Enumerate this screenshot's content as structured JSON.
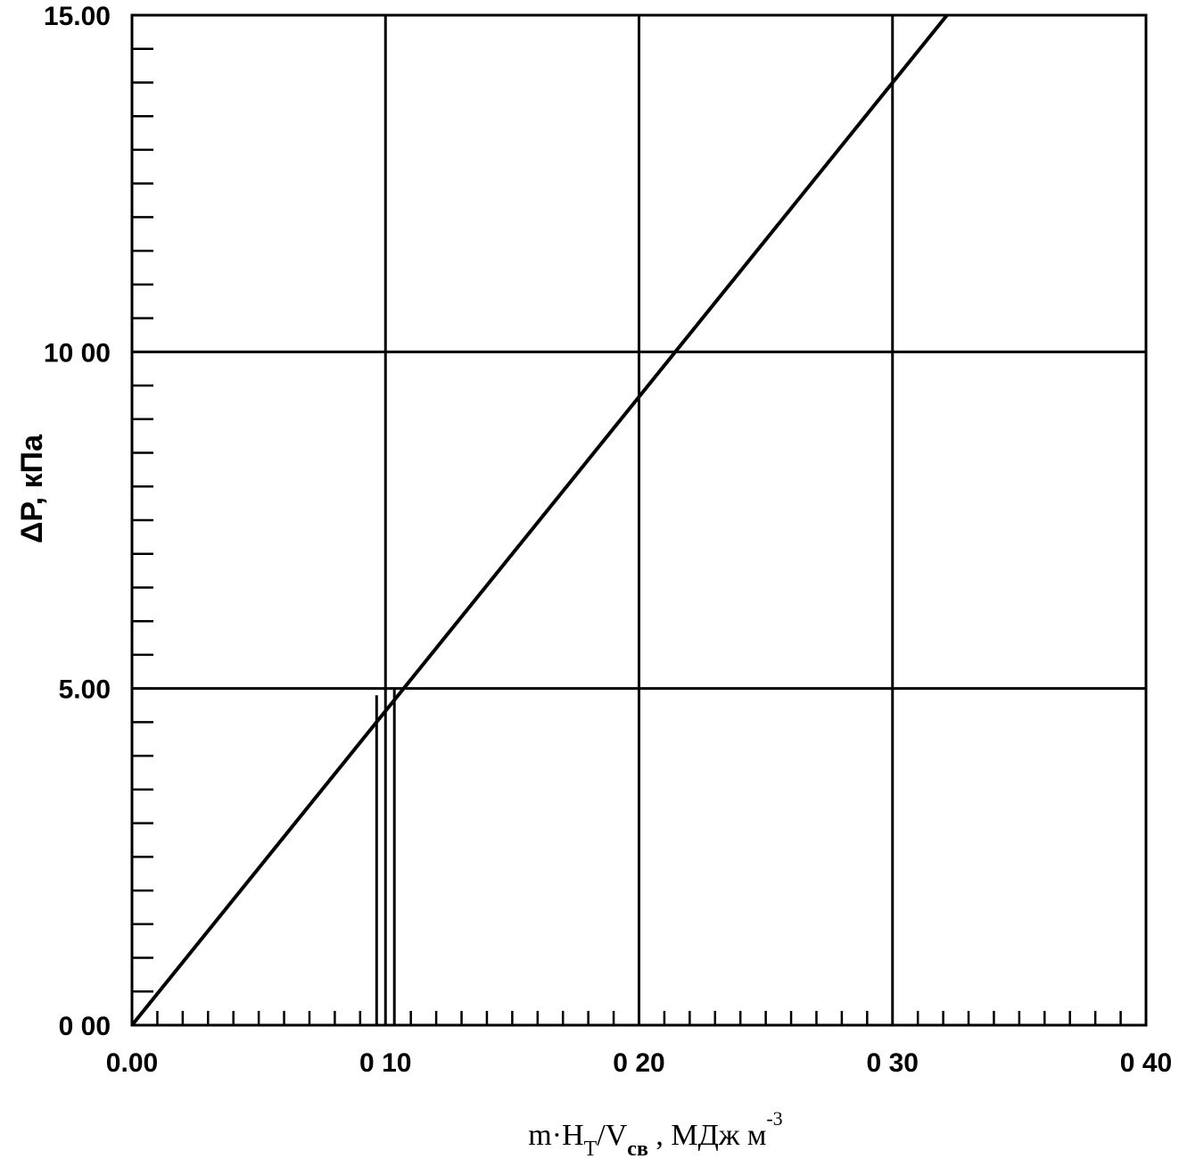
{
  "chart_data": {
    "type": "line",
    "title": "",
    "xlabel": "m·H_T/V_св , МДж м⁻³",
    "xlabel_parts": {
      "lead": "m·H",
      "sub1": "T",
      "mid": "/V",
      "sub2": "св",
      "tail": " , МДж м",
      "sup": "-3"
    },
    "ylabel": "ΔP, кПа",
    "xlim": [
      0,
      0.4
    ],
    "ylim": [
      0,
      15
    ],
    "grid": true,
    "x_ticks": [
      {
        "value": 0.0,
        "label": "0.00"
      },
      {
        "value": 0.1,
        "label": "0 10"
      },
      {
        "value": 0.2,
        "label": "0 20"
      },
      {
        "value": 0.3,
        "label": "0 30"
      },
      {
        "value": 0.4,
        "label": "0 40"
      }
    ],
    "y_ticks": [
      {
        "value": 0,
        "label": "0 00"
      },
      {
        "value": 5,
        "label": "5.00"
      },
      {
        "value": 10,
        "label": "10 00"
      },
      {
        "value": 15,
        "label": "15.00"
      }
    ],
    "x_minor_step": 0.01,
    "y_minor_step": 0.5,
    "series": [
      {
        "x": [
          0.0,
          0.3215
        ],
        "y": [
          0.0,
          15.0
        ]
      }
    ],
    "reference_lines": [
      {
        "x": [
          0.0965,
          0.0965
        ],
        "y": [
          0.0,
          4.9
        ]
      },
      {
        "x": [
          0.1035,
          0.1035
        ],
        "y": [
          0.0,
          5.0
        ]
      }
    ]
  }
}
